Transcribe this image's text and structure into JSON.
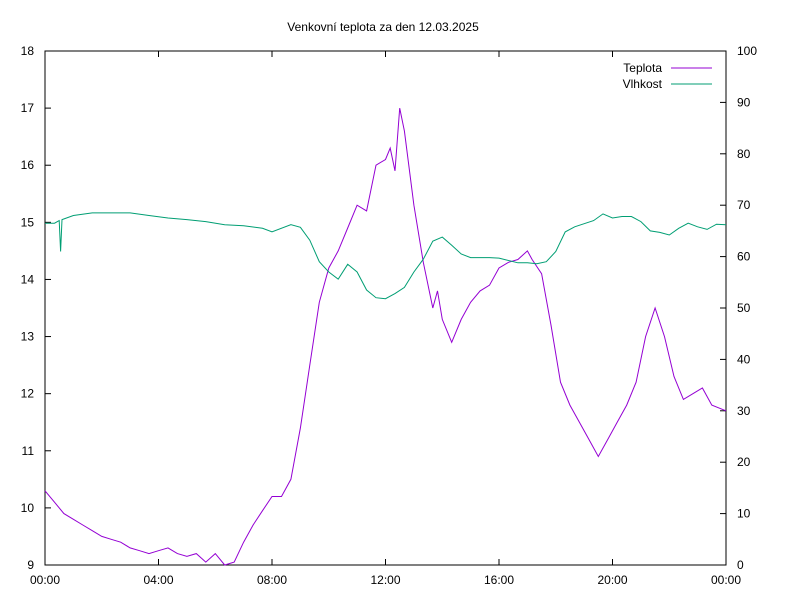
{
  "chart_data": {
    "type": "line",
    "title": "Venkovní teplota za den 12.03.2025",
    "xlabel": "",
    "ylabel": "",
    "y2label": "",
    "x_range": [
      "00:00",
      "24:00"
    ],
    "ylim": [
      9,
      18
    ],
    "y2lim": [
      0,
      100
    ],
    "x_ticks": [
      "00:00",
      "04:00",
      "08:00",
      "12:00",
      "16:00",
      "20:00",
      "00:00"
    ],
    "y_ticks": [
      "9",
      "10",
      "11",
      "12",
      "13",
      "14",
      "15",
      "16",
      "17",
      "18"
    ],
    "y2_ticks": [
      "0",
      "10",
      "20",
      "30",
      "40",
      "50",
      "60",
      "70",
      "80",
      "90",
      "100"
    ],
    "grid": false,
    "legend_position": "top-right",
    "series": [
      {
        "name": "Teplota",
        "axis": "left",
        "color": "#9400d3",
        "points": [
          [
            "00:00",
            10.3
          ],
          [
            "00:20",
            10.1
          ],
          [
            "00:40",
            9.9
          ],
          [
            "01:00",
            9.8
          ],
          [
            "01:20",
            9.7
          ],
          [
            "01:40",
            9.6
          ],
          [
            "02:00",
            9.5
          ],
          [
            "02:20",
            9.45
          ],
          [
            "02:40",
            9.4
          ],
          [
            "03:00",
            9.3
          ],
          [
            "03:20",
            9.25
          ],
          [
            "03:40",
            9.2
          ],
          [
            "04:00",
            9.25
          ],
          [
            "04:20",
            9.3
          ],
          [
            "04:40",
            9.2
          ],
          [
            "05:00",
            9.15
          ],
          [
            "05:20",
            9.2
          ],
          [
            "05:40",
            9.05
          ],
          [
            "06:00",
            9.2
          ],
          [
            "06:20",
            9.0
          ],
          [
            "06:40",
            9.05
          ],
          [
            "07:00",
            9.4
          ],
          [
            "07:20",
            9.7
          ],
          [
            "07:40",
            9.95
          ],
          [
            "08:00",
            10.2
          ],
          [
            "08:20",
            10.2
          ],
          [
            "08:40",
            10.5
          ],
          [
            "09:00",
            11.4
          ],
          [
            "09:20",
            12.5
          ],
          [
            "09:40",
            13.6
          ],
          [
            "10:00",
            14.2
          ],
          [
            "10:20",
            14.5
          ],
          [
            "10:40",
            14.9
          ],
          [
            "11:00",
            15.3
          ],
          [
            "11:20",
            15.2
          ],
          [
            "11:40",
            16.0
          ],
          [
            "12:00",
            16.1
          ],
          [
            "12:10",
            16.3
          ],
          [
            "12:20",
            15.9
          ],
          [
            "12:30",
            17.0
          ],
          [
            "12:40",
            16.6
          ],
          [
            "13:00",
            15.3
          ],
          [
            "13:20",
            14.3
          ],
          [
            "13:40",
            13.5
          ],
          [
            "13:50",
            13.8
          ],
          [
            "14:00",
            13.3
          ],
          [
            "14:20",
            12.9
          ],
          [
            "14:40",
            13.3
          ],
          [
            "15:00",
            13.6
          ],
          [
            "15:20",
            13.8
          ],
          [
            "15:40",
            13.9
          ],
          [
            "16:00",
            14.2
          ],
          [
            "16:20",
            14.3
          ],
          [
            "16:40",
            14.35
          ],
          [
            "17:00",
            14.5
          ],
          [
            "17:10",
            14.35
          ],
          [
            "17:30",
            14.1
          ],
          [
            "17:50",
            13.2
          ],
          [
            "18:10",
            12.2
          ],
          [
            "18:30",
            11.8
          ],
          [
            "18:50",
            11.5
          ],
          [
            "19:10",
            11.2
          ],
          [
            "19:30",
            10.9
          ],
          [
            "19:50",
            11.2
          ],
          [
            "20:10",
            11.5
          ],
          [
            "20:30",
            11.8
          ],
          [
            "20:50",
            12.2
          ],
          [
            "21:10",
            13.0
          ],
          [
            "21:30",
            13.5
          ],
          [
            "21:50",
            13.0
          ],
          [
            "22:10",
            12.3
          ],
          [
            "22:30",
            11.9
          ],
          [
            "22:50",
            12.0
          ],
          [
            "23:10",
            12.1
          ],
          [
            "23:30",
            11.8
          ],
          [
            "24:00",
            11.7
          ]
        ]
      },
      {
        "name": "Vlhkost",
        "axis": "right",
        "color": "#009e73",
        "points": [
          [
            "00:00",
            66.5
          ],
          [
            "00:20",
            66.5
          ],
          [
            "00:30",
            67.0
          ],
          [
            "00:33",
            61.0
          ],
          [
            "00:36",
            67.2
          ],
          [
            "01:00",
            68.0
          ],
          [
            "01:40",
            68.5
          ],
          [
            "02:20",
            68.5
          ],
          [
            "03:00",
            68.5
          ],
          [
            "03:40",
            68.0
          ],
          [
            "04:20",
            67.5
          ],
          [
            "05:00",
            67.2
          ],
          [
            "05:40",
            66.8
          ],
          [
            "06:20",
            66.2
          ],
          [
            "07:00",
            66.0
          ],
          [
            "07:40",
            65.5
          ],
          [
            "08:00",
            64.8
          ],
          [
            "08:40",
            66.2
          ],
          [
            "09:00",
            65.7
          ],
          [
            "09:20",
            63.2
          ],
          [
            "09:40",
            59.0
          ],
          [
            "10:00",
            57.0
          ],
          [
            "10:20",
            55.6
          ],
          [
            "10:40",
            58.5
          ],
          [
            "11:00",
            57.0
          ],
          [
            "11:20",
            53.5
          ],
          [
            "11:40",
            52.0
          ],
          [
            "12:00",
            51.8
          ],
          [
            "12:20",
            52.8
          ],
          [
            "12:40",
            54.0
          ],
          [
            "13:00",
            57.0
          ],
          [
            "13:20",
            59.5
          ],
          [
            "13:40",
            63.0
          ],
          [
            "14:00",
            63.8
          ],
          [
            "14:20",
            62.2
          ],
          [
            "14:40",
            60.5
          ],
          [
            "15:00",
            59.8
          ],
          [
            "15:40",
            59.8
          ],
          [
            "16:00",
            59.7
          ],
          [
            "16:40",
            58.8
          ],
          [
            "17:00",
            58.8
          ],
          [
            "17:20",
            58.6
          ],
          [
            "17:40",
            59.0
          ],
          [
            "18:00",
            61.0
          ],
          [
            "18:20",
            64.8
          ],
          [
            "18:40",
            65.8
          ],
          [
            "19:20",
            67.0
          ],
          [
            "19:40",
            68.3
          ],
          [
            "20:00",
            67.5
          ],
          [
            "20:20",
            67.8
          ],
          [
            "20:40",
            67.8
          ],
          [
            "21:00",
            66.8
          ],
          [
            "21:20",
            65.0
          ],
          [
            "21:40",
            64.7
          ],
          [
            "22:00",
            64.2
          ],
          [
            "22:20",
            65.5
          ],
          [
            "22:40",
            66.5
          ],
          [
            "23:00",
            65.8
          ],
          [
            "23:20",
            65.3
          ],
          [
            "23:40",
            66.3
          ],
          [
            "24:00",
            66.2
          ]
        ]
      }
    ]
  }
}
